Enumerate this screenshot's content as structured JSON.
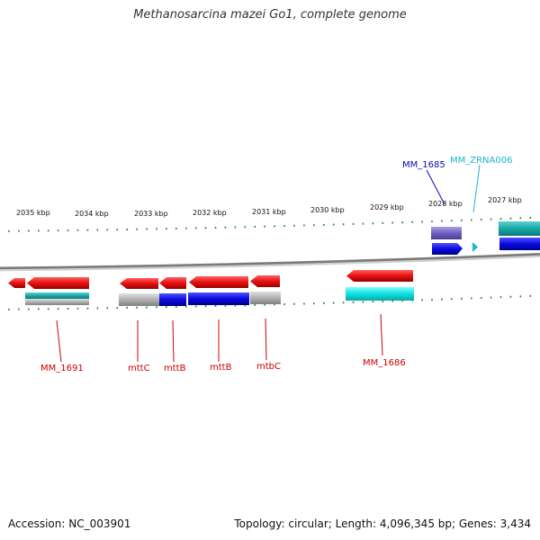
{
  "title": "Methanosarcina mazei Go1, complete genome",
  "footer": {
    "accession": "Accession: NC_003901",
    "stats": "Topology: circular; Length: 4,096,345 bp; Genes: 3,434"
  },
  "axis": {
    "labels": [
      "2035 kbp",
      "2034 kbp",
      "2033 kbp",
      "2032 kbp",
      "2031 kbp",
      "2030 kbp",
      "2029 kbp",
      "2028 kbp",
      "2027 kbp"
    ],
    "tick_color": "#2a8a2a",
    "backbone_color": "#808080"
  },
  "colors": {
    "red": "#e81010",
    "red_dark": "#a00000",
    "cyan": "#10d8d8",
    "teal": "#14a0a0",
    "blue": "#0a0ae0",
    "purple": "#7060c0",
    "gray": "#b0b0b0",
    "label_red": "#cc0000",
    "label_blue": "#0a0ab0",
    "label_cyan": "#19b5d5"
  },
  "gene_labels": [
    {
      "text": "MM_1691",
      "color": "label_red"
    },
    {
      "text": "mttC",
      "color": "label_red"
    },
    {
      "text": "mttB",
      "color": "label_red"
    },
    {
      "text": "mttB",
      "color": "label_red"
    },
    {
      "text": "mtbC",
      "color": "label_red"
    },
    {
      "text": "MM_1686",
      "color": "label_red"
    },
    {
      "text": "MM_1685",
      "color": "label_blue"
    },
    {
      "text": "MM_ZRNA006",
      "color": "label_cyan"
    }
  ]
}
